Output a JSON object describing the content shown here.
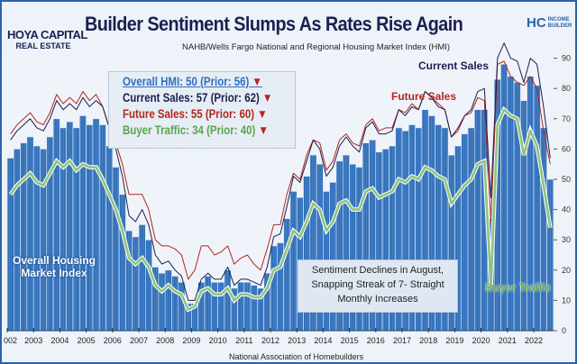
{
  "header": {
    "title": "Builder Sentiment Slumps As Rates Rise Again",
    "subtitle": "NAHB/Wells Fargo National and Regional Housing Market Index (HMI)",
    "logo_left": "HOYA CAPITAL",
    "logo_left_sub": "REAL ESTATE",
    "logo_right": "HC",
    "logo_right_sub": "INCOME BUILDER"
  },
  "legend": {
    "items": [
      {
        "text": "Overall HMI: 50 (Prior: 56)",
        "arrow": "▼",
        "color": "#2d6fc0"
      },
      {
        "text": "Current Sales: 57 (Prior: 62)",
        "arrow": "▼",
        "color": "#1c1f4f"
      },
      {
        "text": "Future Sales: 55 (Prior: 60)",
        "arrow": "▼",
        "color": "#b3261e"
      },
      {
        "text": "Buyer Traffic: 34 (Prior: 40)",
        "arrow": "▼",
        "color": "#5aa64a"
      }
    ]
  },
  "annotations": {
    "note": "Sentiment Declines in August, Snapping Streak of 7- Straight Monthly Increases",
    "overall": "Overall Housing Market Index",
    "current": "Current Sales",
    "future": "Future Sales",
    "traffic": "Buyer Traffic"
  },
  "source": "National Association of Homebuilders",
  "chart_data": {
    "type": "bar",
    "xlabel": "",
    "ylabel": "",
    "ylim": [
      0,
      95
    ],
    "yticks": [
      0,
      10,
      20,
      30,
      40,
      50,
      60,
      70,
      80,
      90
    ],
    "xticks": [
      "002",
      "2003",
      "2004",
      "2005",
      "2006",
      "2007",
      "2008",
      "2009",
      "2010",
      "2011",
      "2012",
      "2013",
      "2014",
      "2015",
      "2016",
      "2017",
      "2018",
      "2019",
      "2020",
      "2021",
      "2022"
    ],
    "x_start": 2002,
    "x_step_years": 0.25,
    "series": [
      {
        "name": "Overall Housing Market Index",
        "type": "bar",
        "color": "#2f6fba",
        "values": [
          57,
          60,
          62,
          64,
          61,
          60,
          64,
          70,
          67,
          69,
          67,
          71,
          68,
          70,
          68,
          61,
          54,
          45,
          33,
          31,
          35,
          30,
          21,
          19,
          20,
          18,
          16,
          9,
          9,
          16,
          18,
          16,
          16,
          20,
          14,
          16,
          16,
          15,
          14,
          19,
          28,
          29,
          37,
          46,
          44,
          51,
          58,
          55,
          46,
          49,
          56,
          58,
          55,
          54,
          62,
          63,
          59,
          60,
          61,
          67,
          66,
          68,
          67,
          73,
          71,
          68,
          67,
          58,
          61,
          65,
          67,
          73,
          73,
          37,
          83,
          88,
          84,
          82,
          76,
          84,
          81,
          67,
          50
        ]
      },
      {
        "name": "Current Sales",
        "type": "line",
        "color": "#1c1f4f",
        "values": [
          63,
          66,
          68,
          70,
          67,
          66,
          70,
          76,
          73,
          75,
          73,
          77,
          74,
          76,
          74,
          67,
          60,
          51,
          38,
          36,
          40,
          35,
          25,
          22,
          23,
          20,
          18,
          10,
          10,
          17,
          19,
          17,
          17,
          21,
          15,
          17,
          17,
          16,
          15,
          21,
          31,
          32,
          41,
          51,
          49,
          56,
          63,
          60,
          51,
          54,
          61,
          64,
          61,
          59,
          67,
          69,
          65,
          65,
          66,
          73,
          71,
          74,
          73,
          79,
          77,
          74,
          73,
          64,
          67,
          71,
          73,
          79,
          80,
          44,
          90,
          95,
          90,
          89,
          82,
          90,
          88,
          74,
          57
        ]
      },
      {
        "name": "Future Sales",
        "type": "line",
        "color": "#b3261e",
        "values": [
          65,
          68,
          70,
          72,
          69,
          68,
          72,
          78,
          75,
          77,
          75,
          79,
          76,
          78,
          74,
          67,
          62,
          55,
          45,
          45,
          45,
          40,
          30,
          28,
          28,
          27,
          25,
          17,
          20,
          28,
          28,
          25,
          26,
          28,
          22,
          24,
          25,
          22,
          20,
          27,
          35,
          35,
          45,
          52,
          50,
          58,
          63,
          62,
          53,
          56,
          63,
          65,
          62,
          61,
          68,
          70,
          66,
          67,
          67,
          73,
          72,
          75,
          73,
          79,
          77,
          75,
          73,
          64,
          66,
          71,
          72,
          77,
          76,
          36,
          88,
          89,
          84,
          82,
          81,
          84,
          80,
          66,
          55
        ]
      },
      {
        "name": "Buyer Traffic",
        "type": "line",
        "color": "#8cc47e",
        "values": [
          45,
          48,
          50,
          52,
          49,
          48,
          52,
          56,
          54,
          56,
          53,
          55,
          54,
          54,
          50,
          45,
          40,
          33,
          24,
          22,
          24,
          21,
          15,
          13,
          15,
          13,
          12,
          7,
          8,
          13,
          14,
          12,
          12,
          14,
          10,
          12,
          12,
          11,
          11,
          14,
          20,
          21,
          27,
          33,
          31,
          36,
          42,
          40,
          33,
          36,
          42,
          43,
          40,
          40,
          46,
          47,
          44,
          45,
          46,
          50,
          49,
          51,
          50,
          54,
          53,
          51,
          50,
          42,
          45,
          48,
          50,
          55,
          56,
          15,
          68,
          73,
          71,
          70,
          58,
          66,
          61,
          48,
          34
        ]
      }
    ]
  }
}
